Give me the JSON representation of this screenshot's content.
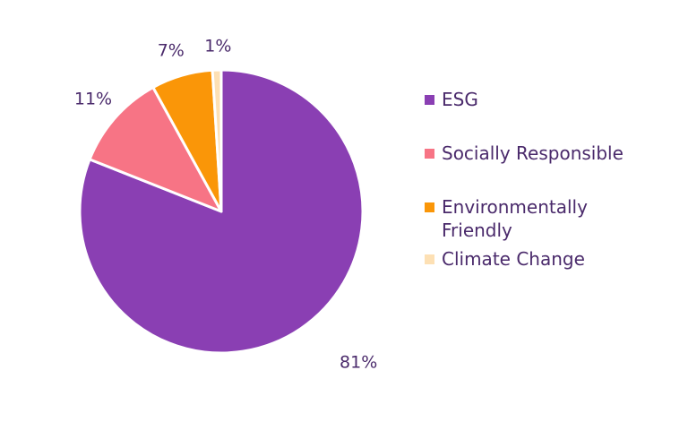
{
  "chart_data": {
    "type": "pie",
    "series": [
      {
        "name": "ESG",
        "value": 81,
        "label": "81%",
        "color": "#8a3fb3"
      },
      {
        "name": "Socially Responsible",
        "value": 11,
        "label": "11%",
        "color": "#f77485"
      },
      {
        "name": "Environmentally Friendly",
        "value": 7,
        "label": "7%",
        "color": "#fa9608"
      },
      {
        "name": "Climate Change",
        "value": 1,
        "label": "1%",
        "color": "#fde0b4"
      }
    ],
    "legend_position": "right",
    "title": ""
  },
  "legend": {
    "items": [
      {
        "label": "ESG",
        "color": "#8a3fb3"
      },
      {
        "label": "Socially Responsible",
        "color": "#f77485"
      },
      {
        "label": "Environmentally Friendly",
        "color": "#fa9608"
      },
      {
        "label": "Climate Change",
        "color": "#fde0b4"
      }
    ]
  }
}
